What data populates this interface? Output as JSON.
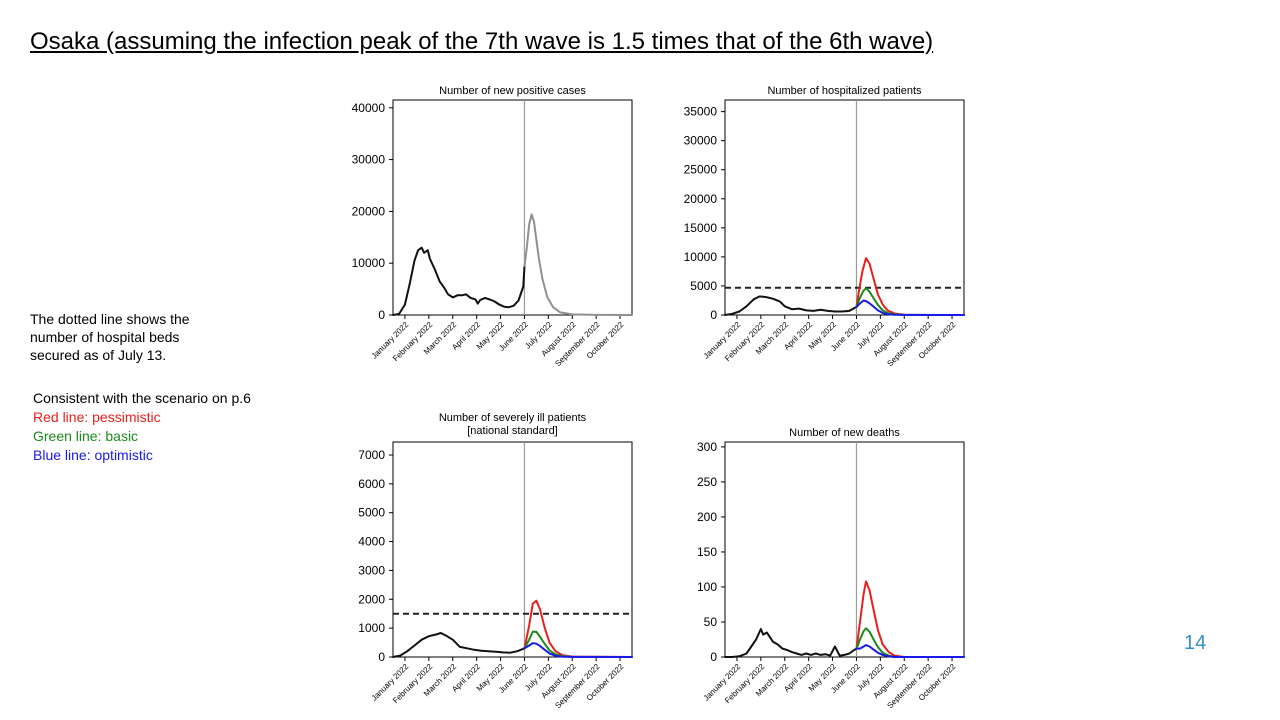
{
  "slide": {
    "title": "Osaka (assuming the infection peak of the 7th wave is 1.5 times that of the 6th wave)",
    "page_number": "14"
  },
  "note": {
    "text": "The dotted line shows the number of hospital beds secured as of July 13."
  },
  "legend": {
    "heading": "Consistent with the scenario on p.6",
    "red": "Red line: pessimistic",
    "green": "Green line: basic",
    "blue": "Blue line: optimistic",
    "colors": {
      "red": "#e8201c",
      "green": "#1a8a1a",
      "blue": "#1a1ae6",
      "black": "#111111",
      "gray": "#909090",
      "divider": "#9a9a9a"
    }
  },
  "chart_data": [
    {
      "type": "line",
      "title_lines": [
        "Number of new positive cases"
      ],
      "x_tick_labels": [
        "January 2022",
        "February 2022",
        "March 2022",
        "April 2022",
        "May 2022",
        "June 2022",
        "July 2022",
        "August 2022",
        "September 2022",
        "October 2022"
      ],
      "x_range_months": [
        0,
        10
      ],
      "y_ticks": [
        0,
        10000,
        20000,
        30000,
        40000
      ],
      "ylim": [
        0,
        41500
      ],
      "divider_x": 5.5,
      "threshold": null,
      "series": [
        {
          "role": "actual",
          "color": "#111111",
          "points": [
            [
              0,
              0
            ],
            [
              0.25,
              200
            ],
            [
              0.5,
              2000
            ],
            [
              0.7,
              6000
            ],
            [
              0.9,
              10500
            ],
            [
              1.05,
              12500
            ],
            [
              1.2,
              13000
            ],
            [
              1.3,
              12000
            ],
            [
              1.45,
              12500
            ],
            [
              1.55,
              10800
            ],
            [
              1.75,
              8800
            ],
            [
              1.95,
              6500
            ],
            [
              2.15,
              5200
            ],
            [
              2.3,
              4000
            ],
            [
              2.5,
              3400
            ],
            [
              2.7,
              3800
            ],
            [
              2.9,
              3800
            ],
            [
              3.05,
              4000
            ],
            [
              3.25,
              3300
            ],
            [
              3.45,
              3000
            ],
            [
              3.55,
              2200
            ],
            [
              3.65,
              2900
            ],
            [
              3.85,
              3300
            ],
            [
              4.05,
              3000
            ],
            [
              4.25,
              2600
            ],
            [
              4.45,
              2000
            ],
            [
              4.65,
              1600
            ],
            [
              4.85,
              1500
            ],
            [
              5.05,
              1800
            ],
            [
              5.25,
              2800
            ],
            [
              5.45,
              5500
            ],
            [
              5.5,
              9500
            ]
          ]
        },
        {
          "role": "projection",
          "color": "#909090",
          "points": [
            [
              5.5,
              9500
            ],
            [
              5.6,
              13000
            ],
            [
              5.7,
              17500
            ],
            [
              5.8,
              19400
            ],
            [
              5.9,
              18000
            ],
            [
              6.0,
              14500
            ],
            [
              6.1,
              11000
            ],
            [
              6.25,
              7000
            ],
            [
              6.45,
              3500
            ],
            [
              6.7,
              1500
            ],
            [
              7.0,
              500
            ],
            [
              7.5,
              120
            ],
            [
              8.5,
              20
            ],
            [
              10,
              0
            ]
          ]
        }
      ]
    },
    {
      "type": "line",
      "title_lines": [
        "Number of hospitalized patients"
      ],
      "x_tick_labels": [
        "January 2022",
        "February 2022",
        "March 2022",
        "April 2022",
        "May 2022",
        "June 2022",
        "July 2022",
        "August 2022",
        "September 2022",
        "October 2022"
      ],
      "x_range_months": [
        0,
        10
      ],
      "y_ticks": [
        0,
        5000,
        10000,
        15000,
        20000,
        25000,
        30000,
        35000
      ],
      "ylim": [
        0,
        37000
      ],
      "divider_x": 5.5,
      "threshold": 4700,
      "series": [
        {
          "role": "actual",
          "color": "#111111",
          "points": [
            [
              0,
              0
            ],
            [
              0.3,
              200
            ],
            [
              0.6,
              600
            ],
            [
              0.9,
              1500
            ],
            [
              1.2,
              2700
            ],
            [
              1.45,
              3200
            ],
            [
              1.7,
              3100
            ],
            [
              2.0,
              2800
            ],
            [
              2.3,
              2300
            ],
            [
              2.5,
              1500
            ],
            [
              2.8,
              1000
            ],
            [
              3.1,
              1100
            ],
            [
              3.4,
              800
            ],
            [
              3.7,
              700
            ],
            [
              4.0,
              900
            ],
            [
              4.3,
              700
            ],
            [
              4.6,
              600
            ],
            [
              4.9,
              600
            ],
            [
              5.2,
              700
            ],
            [
              5.5,
              1400
            ]
          ]
        },
        {
          "role": "pessimistic",
          "color": "#e8201c",
          "points": [
            [
              5.5,
              1400
            ],
            [
              5.6,
              4000
            ],
            [
              5.75,
              7500
            ],
            [
              5.9,
              9800
            ],
            [
              6.05,
              8800
            ],
            [
              6.2,
              6500
            ],
            [
              6.4,
              3500
            ],
            [
              6.6,
              1800
            ],
            [
              6.8,
              800
            ],
            [
              7.1,
              250
            ],
            [
              7.5,
              60
            ],
            [
              8.5,
              5
            ],
            [
              10,
              0
            ]
          ]
        },
        {
          "role": "basic",
          "color": "#1a8a1a",
          "points": [
            [
              5.5,
              1400
            ],
            [
              5.65,
              3000
            ],
            [
              5.8,
              4200
            ],
            [
              5.9,
              4600
            ],
            [
              6.05,
              4000
            ],
            [
              6.2,
              3000
            ],
            [
              6.4,
              1700
            ],
            [
              6.6,
              800
            ],
            [
              6.8,
              350
            ],
            [
              7.1,
              100
            ],
            [
              7.5,
              20
            ],
            [
              10,
              0
            ]
          ]
        },
        {
          "role": "optimistic",
          "color": "#1a1ae6",
          "points": [
            [
              5.5,
              1400
            ],
            [
              5.65,
              2000
            ],
            [
              5.8,
              2500
            ],
            [
              5.9,
              2400
            ],
            [
              6.05,
              2000
            ],
            [
              6.2,
              1500
            ],
            [
              6.4,
              800
            ],
            [
              6.6,
              350
            ],
            [
              6.8,
              150
            ],
            [
              7.1,
              40
            ],
            [
              7.5,
              10
            ],
            [
              10,
              0
            ]
          ]
        }
      ]
    },
    {
      "type": "line",
      "title_lines": [
        "Number of severely ill patients",
        "[national standard]"
      ],
      "x_tick_labels": [
        "January 2022",
        "February 2022",
        "March 2022",
        "April 2022",
        "May 2022",
        "June 2022",
        "July 2022",
        "August 2022",
        "September 2022",
        "October 2022"
      ],
      "x_range_months": [
        0,
        10
      ],
      "y_ticks": [
        0,
        1000,
        2000,
        3000,
        4000,
        5000,
        6000,
        7000
      ],
      "ylim": [
        0,
        7450
      ],
      "divider_x": 5.5,
      "threshold": 1500,
      "series": [
        {
          "role": "actual",
          "color": "#111111",
          "points": [
            [
              0,
              0
            ],
            [
              0.3,
              50
            ],
            [
              0.6,
              200
            ],
            [
              0.9,
              400
            ],
            [
              1.2,
              600
            ],
            [
              1.5,
              720
            ],
            [
              1.8,
              780
            ],
            [
              2.0,
              830
            ],
            [
              2.2,
              750
            ],
            [
              2.5,
              600
            ],
            [
              2.8,
              350
            ],
            [
              3.1,
              300
            ],
            [
              3.4,
              250
            ],
            [
              3.7,
              220
            ],
            [
              4.0,
              200
            ],
            [
              4.3,
              180
            ],
            [
              4.6,
              160
            ],
            [
              4.9,
              150
            ],
            [
              5.2,
              200
            ],
            [
              5.5,
              300
            ]
          ]
        },
        {
          "role": "pessimistic",
          "color": "#e8201c",
          "points": [
            [
              5.5,
              300
            ],
            [
              5.7,
              1100
            ],
            [
              5.85,
              1850
            ],
            [
              6.0,
              1950
            ],
            [
              6.15,
              1650
            ],
            [
              6.35,
              1000
            ],
            [
              6.55,
              500
            ],
            [
              6.8,
              200
            ],
            [
              7.1,
              60
            ],
            [
              7.5,
              15
            ],
            [
              10,
              0
            ]
          ]
        },
        {
          "role": "basic",
          "color": "#1a8a1a",
          "points": [
            [
              5.5,
              300
            ],
            [
              5.7,
              600
            ],
            [
              5.85,
              880
            ],
            [
              6.0,
              870
            ],
            [
              6.15,
              700
            ],
            [
              6.35,
              450
            ],
            [
              6.55,
              230
            ],
            [
              6.8,
              90
            ],
            [
              7.1,
              25
            ],
            [
              7.5,
              5
            ],
            [
              10,
              0
            ]
          ]
        },
        {
          "role": "optimistic",
          "color": "#1a1ae6",
          "points": [
            [
              5.5,
              300
            ],
            [
              5.7,
              400
            ],
            [
              5.85,
              480
            ],
            [
              6.0,
              460
            ],
            [
              6.15,
              380
            ],
            [
              6.35,
              250
            ],
            [
              6.55,
              120
            ],
            [
              6.8,
              45
            ],
            [
              7.1,
              12
            ],
            [
              7.5,
              3
            ],
            [
              10,
              0
            ]
          ]
        }
      ]
    },
    {
      "type": "line",
      "title_lines": [
        "Number of new deaths"
      ],
      "x_tick_labels": [
        "January 2022",
        "February 2022",
        "March 2022",
        "April 2022",
        "May 2022",
        "June 2022",
        "July 2022",
        "August 2022",
        "September 2022",
        "October 2022"
      ],
      "x_range_months": [
        0,
        10
      ],
      "y_ticks": [
        0,
        50,
        100,
        150,
        200,
        250,
        300
      ],
      "ylim": [
        0,
        307
      ],
      "divider_x": 5.5,
      "threshold": null,
      "series": [
        {
          "role": "actual",
          "color": "#111111",
          "points": [
            [
              0,
              0
            ],
            [
              0.3,
              0
            ],
            [
              0.6,
              1
            ],
            [
              0.9,
              5
            ],
            [
              1.1,
              15
            ],
            [
              1.3,
              25
            ],
            [
              1.5,
              40
            ],
            [
              1.6,
              32
            ],
            [
              1.75,
              35
            ],
            [
              1.85,
              30
            ],
            [
              2.0,
              22
            ],
            [
              2.2,
              18
            ],
            [
              2.4,
              12
            ],
            [
              2.6,
              10
            ],
            [
              2.8,
              7
            ],
            [
              3.0,
              5
            ],
            [
              3.2,
              3
            ],
            [
              3.4,
              5
            ],
            [
              3.6,
              3
            ],
            [
              3.8,
              5
            ],
            [
              4.0,
              3
            ],
            [
              4.2,
              4
            ],
            [
              4.4,
              2
            ],
            [
              4.6,
              15
            ],
            [
              4.8,
              2
            ],
            [
              5.0,
              3
            ],
            [
              5.2,
              5
            ],
            [
              5.4,
              10
            ],
            [
              5.5,
              12
            ]
          ]
        },
        {
          "role": "pessimistic",
          "color": "#e8201c",
          "points": [
            [
              5.5,
              12
            ],
            [
              5.65,
              50
            ],
            [
              5.8,
              90
            ],
            [
              5.9,
              108
            ],
            [
              6.05,
              95
            ],
            [
              6.2,
              70
            ],
            [
              6.4,
              38
            ],
            [
              6.6,
              18
            ],
            [
              6.85,
              7
            ],
            [
              7.1,
              2
            ],
            [
              7.5,
              0
            ],
            [
              10,
              0
            ]
          ]
        },
        {
          "role": "basic",
          "color": "#1a8a1a",
          "points": [
            [
              5.5,
              12
            ],
            [
              5.65,
              25
            ],
            [
              5.8,
              37
            ],
            [
              5.9,
              41
            ],
            [
              6.05,
              36
            ],
            [
              6.2,
              26
            ],
            [
              6.4,
              14
            ],
            [
              6.6,
              6
            ],
            [
              6.85,
              2
            ],
            [
              7.1,
              0
            ],
            [
              10,
              0
            ]
          ]
        },
        {
          "role": "optimistic",
          "color": "#1a1ae6",
          "points": [
            [
              5.5,
              12
            ],
            [
              5.65,
              12
            ],
            [
              5.8,
              15
            ],
            [
              5.9,
              17
            ],
            [
              6.05,
              15
            ],
            [
              6.2,
              11
            ],
            [
              6.4,
              6
            ],
            [
              6.6,
              3
            ],
            [
              6.85,
              1
            ],
            [
              7.1,
              0
            ],
            [
              10,
              0
            ]
          ]
        }
      ]
    }
  ]
}
